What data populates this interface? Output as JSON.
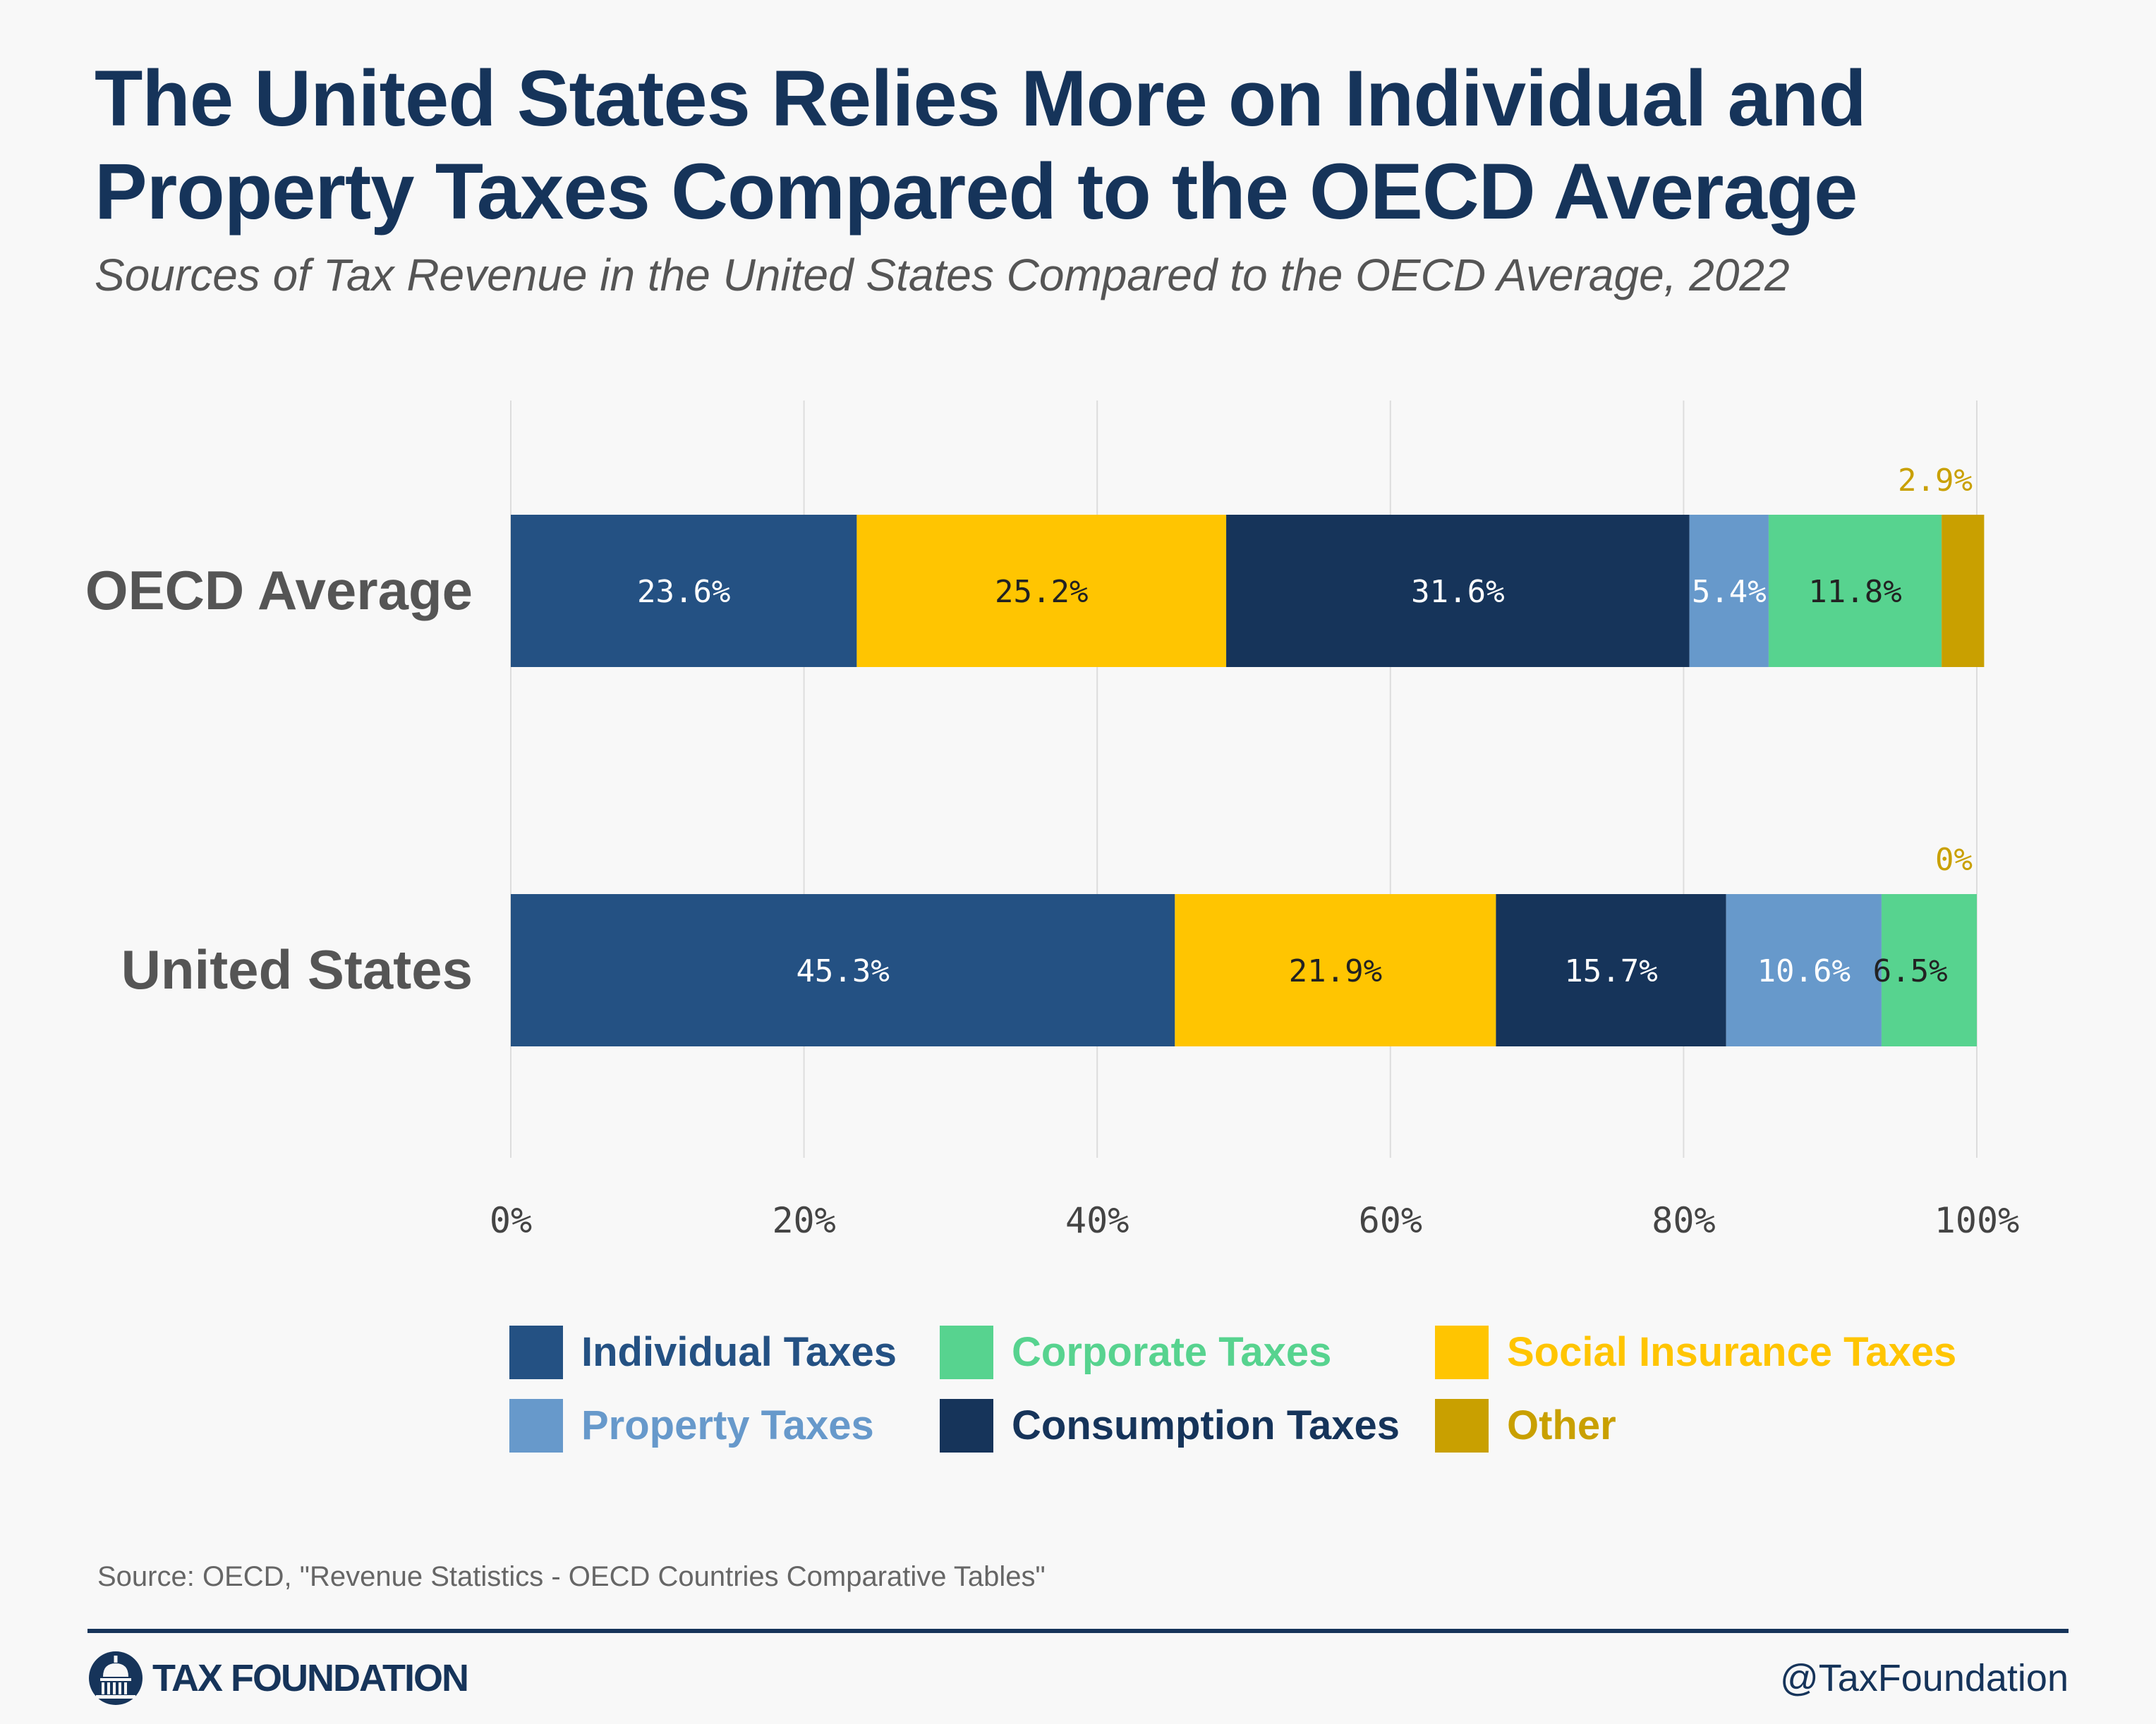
{
  "title_line_1": "The United States Relies More on Individual and",
  "title_line_2": "Property Taxes Compared to the OECD Average",
  "subtitle": "Sources of Tax Revenue in the United States Compared to the OECD Average, 2022",
  "chart_data": {
    "type": "bar",
    "orientation": "horizontal",
    "stacked": true,
    "categories": [
      "OECD Average",
      "United States"
    ],
    "series": [
      {
        "name": "Individual Taxes",
        "color": "#245183",
        "values": [
          23.6,
          45.3
        ],
        "labels": [
          "23.6%",
          "45.3%"
        ]
      },
      {
        "name": "Social Insurance Taxes",
        "color": "#ffc501",
        "values": [
          25.2,
          21.9
        ],
        "labels": [
          "25.2%",
          "21.9%"
        ]
      },
      {
        "name": "Consumption Taxes",
        "color": "#16345a",
        "values": [
          31.6,
          15.7
        ],
        "labels": [
          "31.6%",
          "15.7%"
        ]
      },
      {
        "name": "Property Taxes",
        "color": "#6799cb",
        "values": [
          5.4,
          10.6
        ],
        "labels": [
          "5.4%",
          "10.6%"
        ]
      },
      {
        "name": "Corporate Taxes",
        "color": "#57d38f",
        "values": [
          11.8,
          6.5
        ],
        "labels": [
          "11.8%",
          "6.5%"
        ]
      },
      {
        "name": "Other",
        "color": "#c9a000",
        "values": [
          2.9,
          0
        ],
        "labels": [
          "2.9%",
          "0%"
        ]
      }
    ],
    "xlim": [
      0,
      100
    ],
    "xticks": [
      "0%",
      "20%",
      "40%",
      "60%",
      "80%",
      "100%"
    ],
    "grid": "vertical",
    "legend_position": "bottom"
  },
  "legend": {
    "items": [
      {
        "label": "Individual Taxes",
        "color": "#245183"
      },
      {
        "label": "Corporate Taxes",
        "color": "#57d38f"
      },
      {
        "label": "Social Insurance Taxes",
        "color": "#ffc501"
      },
      {
        "label": "Property Taxes",
        "color": "#6799cb"
      },
      {
        "label": "Consumption Taxes",
        "color": "#16345a"
      },
      {
        "label": "Other",
        "color": "#c9a000"
      }
    ]
  },
  "source": "Source: OECD, \"Revenue Statistics - OECD Countries Comparative Tables\"",
  "footer": {
    "brand": "TAX FOUNDATION",
    "handle": "@TaxFoundation",
    "logo_icon": "capitol-dome-icon"
  }
}
